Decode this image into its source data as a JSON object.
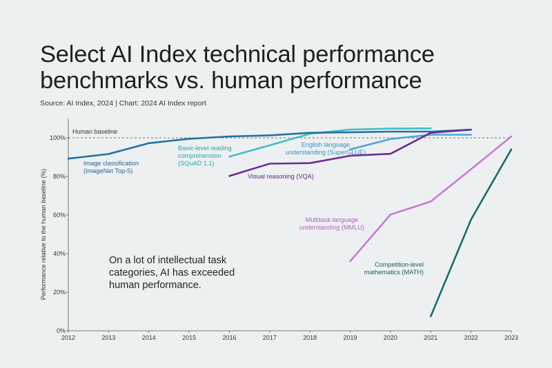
{
  "title_line1": "Select AI Index technical performance",
  "title_line2": "benchmarks vs. human performance",
  "source": "Source: AI Index, 2024 | Chart: 2024 AI Index report",
  "callout_lines": [
    "On a lot of intellectual task",
    "categories, AI has exceeded",
    "human performance."
  ],
  "chart_data": {
    "type": "line",
    "xlabel": "",
    "ylabel": "Performance relative to the human baseline (%)",
    "xlim": [
      2012,
      2023
    ],
    "ylim": [
      0,
      110
    ],
    "x_ticks": [
      "2012",
      "2013",
      "2014",
      "2015",
      "2016",
      "2017",
      "2018",
      "2019",
      "2020",
      "2021",
      "2022",
      "2023"
    ],
    "y_ticks": [
      {
        "value": 0,
        "label": "0%"
      },
      {
        "value": 20,
        "label": "20%"
      },
      {
        "value": 40,
        "label": "40%"
      },
      {
        "value": 60,
        "label": "60%"
      },
      {
        "value": 80,
        "label": "80%"
      },
      {
        "value": 100,
        "label": "100%"
      }
    ],
    "baseline": {
      "value": 100,
      "label": "Human baseline"
    },
    "grid": false,
    "series": [
      {
        "id": "imagenet",
        "name_lines": [
          "Image classification",
          "(ImageNet Top-5)"
        ],
        "color": "#2470a3",
        "label_color": "#2a6690",
        "x": [
          2012,
          2013,
          2014,
          2015,
          2016,
          2017,
          2018,
          2019,
          2020,
          2021,
          2022
        ],
        "y": [
          89.2,
          91.6,
          97.2,
          99.5,
          100.7,
          101.3,
          102.6,
          102.9,
          103.2,
          103.2,
          104.2
        ]
      },
      {
        "id": "squad",
        "name_lines": [
          "Basic-level reading",
          "comprehension",
          "(SQuAD 1.1)"
        ],
        "color": "#3ebfc4",
        "label_color": "#2aa4ad",
        "x": [
          2016,
          2017,
          2018,
          2019,
          2020,
          2021
        ],
        "y": [
          90.3,
          96.1,
          102.1,
          104.3,
          104.8,
          104.9
        ]
      },
      {
        "id": "superglue",
        "name_lines": [
          "English language",
          "understanding (SuperGLUE)"
        ],
        "color": "#49a6dc",
        "label_color": "#3a8fc4",
        "x": [
          2019,
          2020,
          2021,
          2022
        ],
        "y": [
          94.0,
          99.4,
          101.6,
          101.6
        ]
      },
      {
        "id": "vqa",
        "name_lines": [
          "Visual reasoning (VQA)"
        ],
        "color": "#6b2e8f",
        "label_color": "#5e2a80",
        "x": [
          2016,
          2017,
          2018,
          2019,
          2020,
          2021,
          2022
        ],
        "y": [
          80.2,
          86.6,
          86.9,
          90.7,
          91.7,
          102.6,
          104.2
        ]
      },
      {
        "id": "mmlu",
        "name_lines": [
          "Multitask language",
          "understanding (MMLU)"
        ],
        "color": "#c879d4",
        "label_color": "#b25fc0",
        "x": [
          2019,
          2020,
          2021,
          2022,
          2023
        ],
        "y": [
          36.0,
          60.2,
          67.0,
          83.7,
          100.7
        ]
      },
      {
        "id": "math",
        "name_lines": [
          "Competition-level",
          "mathematics (MATH)"
        ],
        "color": "#1a6b6b",
        "label_color": "#165f5f",
        "x": [
          2021,
          2022,
          2023
        ],
        "y": [
          7.5,
          57.6,
          94.0
        ]
      }
    ]
  }
}
